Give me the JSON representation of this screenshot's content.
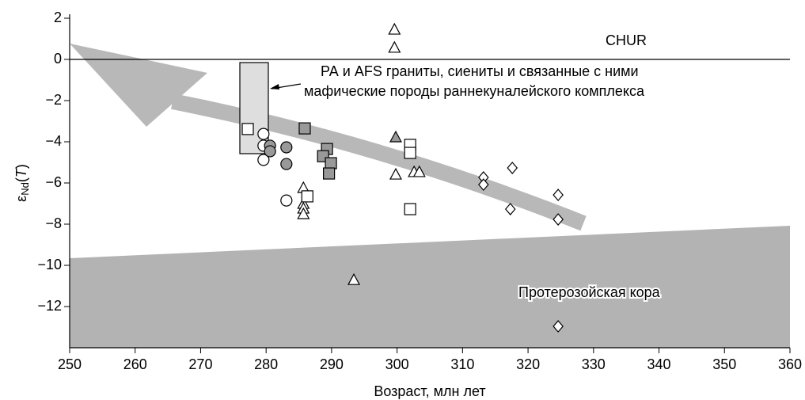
{
  "chart_data": {
    "type": "scatter",
    "xlabel": "Возраст, млн лет",
    "ylabel": [
      "ε",
      "Nd",
      "(",
      "T",
      ")"
    ],
    "xlim": [
      250,
      360
    ],
    "ylim": [
      -14,
      2
    ],
    "xticks": [
      250,
      260,
      270,
      280,
      290,
      300,
      310,
      320,
      330,
      340,
      350,
      360
    ],
    "yticks": [
      -12,
      -10,
      -8,
      -6,
      -4,
      -2,
      0,
      2
    ],
    "reference_line": 0,
    "annotations": [
      "CHUR",
      "РА и AFS  граниты, сиениты и связанные с ними",
      "мафические породы раннекуналейского комплекса",
      "Протерозойская кора"
    ],
    "series": [
      {
        "marker": "triangle",
        "color": "#ffffff",
        "x": [
          299.6,
          299.6,
          299.8,
          302.6,
          303.4,
          285.7,
          285.7,
          285.7,
          285.7,
          293.4
        ],
        "values": [
          1.46,
          0.58,
          -5.58,
          -5.46,
          -5.46,
          -6.23,
          -7.0,
          -7.23,
          -7.5,
          -10.7
        ]
      },
      {
        "marker": "triangle",
        "color": "#999999",
        "x": [
          299.8
        ],
        "values": [
          -3.77
        ]
      },
      {
        "marker": "square",
        "color": "#ffffff",
        "x": [
          277.2,
          286.3,
          302,
          302,
          302
        ],
        "values": [
          -3.38,
          -6.65,
          -4.15,
          -4.54,
          -7.27
        ]
      },
      {
        "marker": "square",
        "color": "#999999",
        "x": [
          285.9,
          289.3,
          288.7,
          289.9,
          289.6
        ],
        "values": [
          -3.35,
          -4.35,
          -4.7,
          -5.04,
          -5.54
        ]
      },
      {
        "marker": "circle",
        "color": "#ffffff",
        "x": [
          279.6,
          279.6,
          279.6,
          283.1
        ],
        "values": [
          -3.62,
          -4.19,
          -4.88,
          -6.85
        ]
      },
      {
        "marker": "circle",
        "color": "#999999",
        "x": [
          280.6,
          280.6,
          283.1,
          283.1
        ],
        "values": [
          -4.19,
          -4.46,
          -4.27,
          -5.08
        ]
      },
      {
        "marker": "diamond",
        "color": "#ffffff",
        "x": [
          313.2,
          313.2,
          317.6,
          317.3,
          324.6,
          324.6,
          324.6
        ],
        "values": [
          -5.73,
          -6.08,
          -5.27,
          -7.27,
          -6.58,
          -7.77,
          -12.96
        ]
      }
    ]
  }
}
